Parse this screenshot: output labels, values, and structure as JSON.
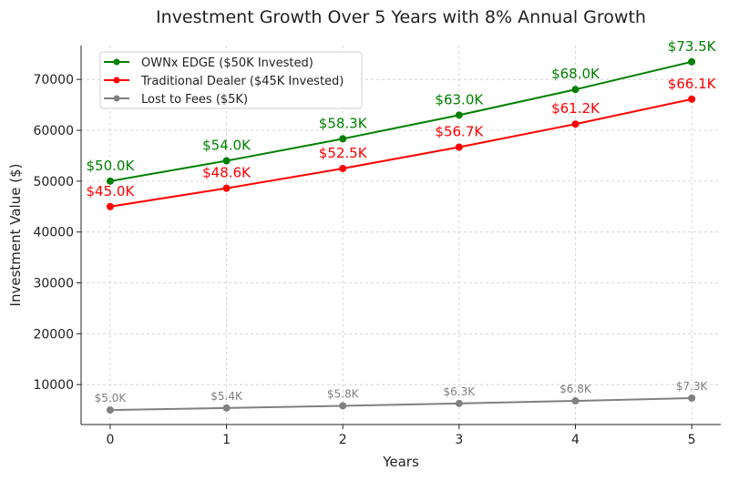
{
  "chart_data": {
    "type": "line",
    "title": "Investment Growth Over 5 Years with 8% Annual Growth",
    "xlabel": "Years",
    "ylabel": "Investment Value ($)",
    "x": [
      0,
      1,
      2,
      3,
      4,
      5
    ],
    "xlim": [
      -0.25,
      5.25
    ],
    "ylim": [
      2150,
      76660
    ],
    "yticks": [
      10000,
      20000,
      30000,
      40000,
      50000,
      60000,
      70000
    ],
    "grid": true,
    "legend_position": "top-left",
    "series": [
      {
        "name": "OWNx EDGE ($50K Invested)",
        "color": "#008000",
        "label_size": "large",
        "values": [
          50000,
          54000,
          58320,
          62986,
          68024,
          73466
        ],
        "labels": [
          "$50.0K",
          "$54.0K",
          "$58.3K",
          "$63.0K",
          "$68.0K",
          "$73.5K"
        ]
      },
      {
        "name": "Traditional Dealer ($45K Invested)",
        "color": "#ff0000",
        "label_size": "large",
        "values": [
          45000,
          48600,
          52488,
          56687,
          61222,
          66120
        ],
        "labels": [
          "$45.0K",
          "$48.6K",
          "$52.5K",
          "$56.7K",
          "$61.2K",
          "$66.1K"
        ]
      },
      {
        "name": "Lost to Fees ($5K)",
        "color": "#808080",
        "label_size": "small",
        "values": [
          5000,
          5400,
          5832,
          6299,
          6802,
          7347
        ],
        "labels": [
          "$5.0K",
          "$5.4K",
          "$5.8K",
          "$6.3K",
          "$6.8K",
          "$7.3K"
        ]
      }
    ]
  }
}
